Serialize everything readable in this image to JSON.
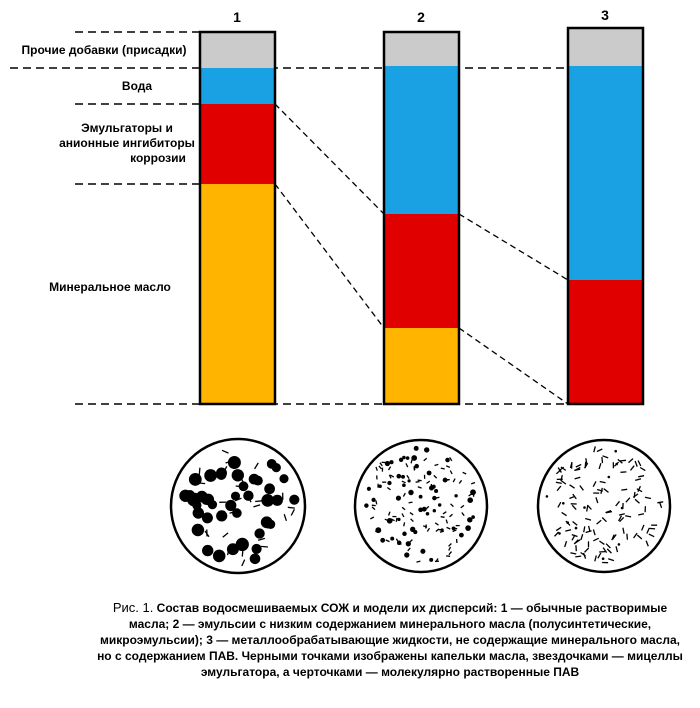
{
  "columns": [
    {
      "number": "1",
      "layers": {
        "other": 0.09,
        "water": 0.1,
        "emulsifiers": 0.21,
        "oil": 0.6
      }
    },
    {
      "number": "2",
      "layers": {
        "other": 0.09,
        "water": 0.4,
        "emulsifiers": 0.31,
        "oil": 0.2
      }
    },
    {
      "number": "3",
      "layers": {
        "other": 0.1,
        "water": 0.67,
        "emulsifiers": 0.33,
        "oil": 0.0
      }
    }
  ],
  "labels": {
    "other": "Прочие добавки (присадки)",
    "water": "Вода",
    "emulsifiers_line1": "Эмульгаторы и",
    "emulsifiers_line2": "анионные ингибиторы",
    "emulsifiers_line3": "коррозии",
    "oil": "Минеральное масло"
  },
  "colors": {
    "other": "#cbcbcb",
    "water": "#1aa1e4",
    "emulsifiers": "#e00000",
    "oil": "#ffb400"
  },
  "caption": {
    "prefix": "Рис. 1.",
    "text": "Состав водосмешиваемых СОЖ и модели их дисперсий: 1 — обычные растворимые масла; 2 — эмульсии с низким содержанием минерального масла (полусинтетические, микроэмульсии); 3 — металлообрабатывающие жидкости, не содержащие минерального масла, но с содержанием ПАВ. Черными точками изображены капельки масла, звездочками — мицеллы эмульгатора, а черточками — молекулярно растворенные ПАВ"
  }
}
